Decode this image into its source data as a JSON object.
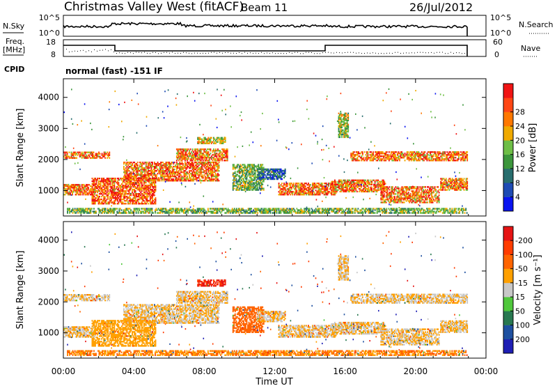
{
  "header": {
    "station": "Christmas Valley West (fitACF)",
    "beam": "Beam 11",
    "date": "26/Jul/2012"
  },
  "labels": {
    "nsky": "N.Sky",
    "nsearch": "N.Search",
    "freq_line1": "Freq.",
    "freq_line2": "[MHz]",
    "nave": "Nave",
    "cpid": "CPID",
    "cpid_value": "normal (fast) -151 IF",
    "nsky_ticks": [
      "10^5",
      "10^0"
    ],
    "nsearch_ticks": [
      "10^5",
      "10^0"
    ],
    "freq_ticks": [
      "18",
      "8"
    ],
    "nave_ticks": [
      "60",
      "0"
    ]
  },
  "chart_data": [
    {
      "type": "heatmap",
      "name": "power",
      "ylabel": "Slant Range [km]",
      "ylim": [
        180,
        4600
      ],
      "y_ticks": [
        1000,
        2000,
        3000,
        4000
      ],
      "xlim": [
        0,
        24
      ],
      "colorbar": {
        "label": "Power [dB]",
        "ticks": [
          4,
          8,
          12,
          16,
          20,
          24,
          28
        ],
        "colors": [
          "#0a14f0",
          "#1e4bb4",
          "#286e6e",
          "#3c963c",
          "#6ebe46",
          "#f0aa00",
          "#ff7800",
          "#ff4614",
          "#f01414"
        ]
      }
    },
    {
      "type": "heatmap",
      "name": "velocity",
      "ylabel": "Slant Range [km]",
      "ylim": [
        180,
        4600
      ],
      "y_ticks": [
        1000,
        2000,
        3000,
        4000
      ],
      "xlim": [
        0,
        24
      ],
      "xlabel": "Time UT",
      "x_ticks": [
        "00:00",
        "04:00",
        "08:00",
        "12:00",
        "16:00",
        "20:00",
        "00:00"
      ],
      "colorbar": {
        "label": "Velocity [m s⁻¹]",
        "ticks": [
          "200",
          "100",
          "50",
          "15",
          "-15",
          "-50",
          "-100",
          "-200"
        ],
        "colors": [
          "#1e1eb4",
          "#1e50a0",
          "#287850",
          "#50c83c",
          "#c8c8c8",
          "#ffa000",
          "#ff6400",
          "#ff3c00",
          "#e61414"
        ]
      }
    }
  ]
}
